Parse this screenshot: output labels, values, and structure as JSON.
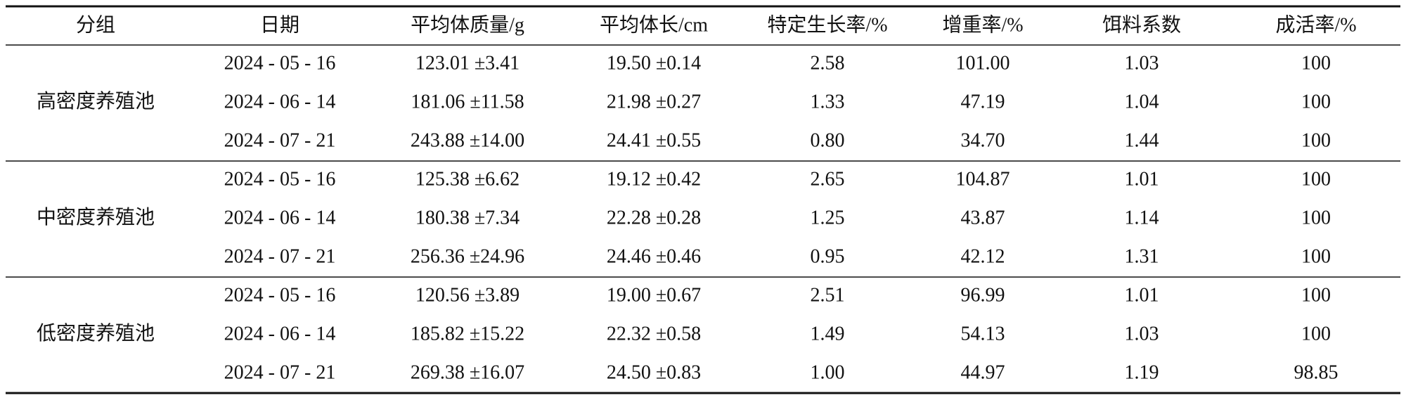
{
  "table": {
    "header": [
      "分组",
      "日期",
      "平均体质量/g",
      "平均体长/cm",
      "特定生长率/%",
      "增重率/%",
      "饵料系数",
      "成活率/%"
    ],
    "groups": [
      {
        "name": "高密度养殖池",
        "rows": [
          [
            "2024 - 05 - 16",
            "123.01 ±3.41",
            "19.50 ±0.14",
            "2.58",
            "101.00",
            "1.03",
            "100"
          ],
          [
            "2024 - 06 - 14",
            "181.06 ±11.58",
            "21.98 ±0.27",
            "1.33",
            "47.19",
            "1.04",
            "100"
          ],
          [
            "2024 - 07 - 21",
            "243.88 ±14.00",
            "24.41 ±0.55",
            "0.80",
            "34.70",
            "1.44",
            "100"
          ]
        ]
      },
      {
        "name": "中密度养殖池",
        "rows": [
          [
            "2024 - 05 - 16",
            "125.38 ±6.62",
            "19.12 ±0.42",
            "2.65",
            "104.87",
            "1.01",
            "100"
          ],
          [
            "2024 - 06 - 14",
            "180.38 ±7.34",
            "22.28 ±0.28",
            "1.25",
            "43.87",
            "1.14",
            "100"
          ],
          [
            "2024 - 07 - 21",
            "256.36 ±24.96",
            "24.46 ±0.46",
            "0.95",
            "42.12",
            "1.31",
            "100"
          ]
        ]
      },
      {
        "name": "低密度养殖池",
        "rows": [
          [
            "2024 - 05 - 16",
            "120.56 ±3.89",
            "19.00 ±0.67",
            "2.51",
            "96.99",
            "1.01",
            "100"
          ],
          [
            "2024 - 06 - 14",
            "185.82 ±15.22",
            "22.32 ±0.58",
            "1.49",
            "54.13",
            "1.03",
            "100"
          ],
          [
            "2024 - 07 - 21",
            "269.38 ±16.07",
            "24.50 ±0.83",
            "1.00",
            "44.97",
            "1.19",
            "98.85"
          ]
        ]
      }
    ]
  }
}
